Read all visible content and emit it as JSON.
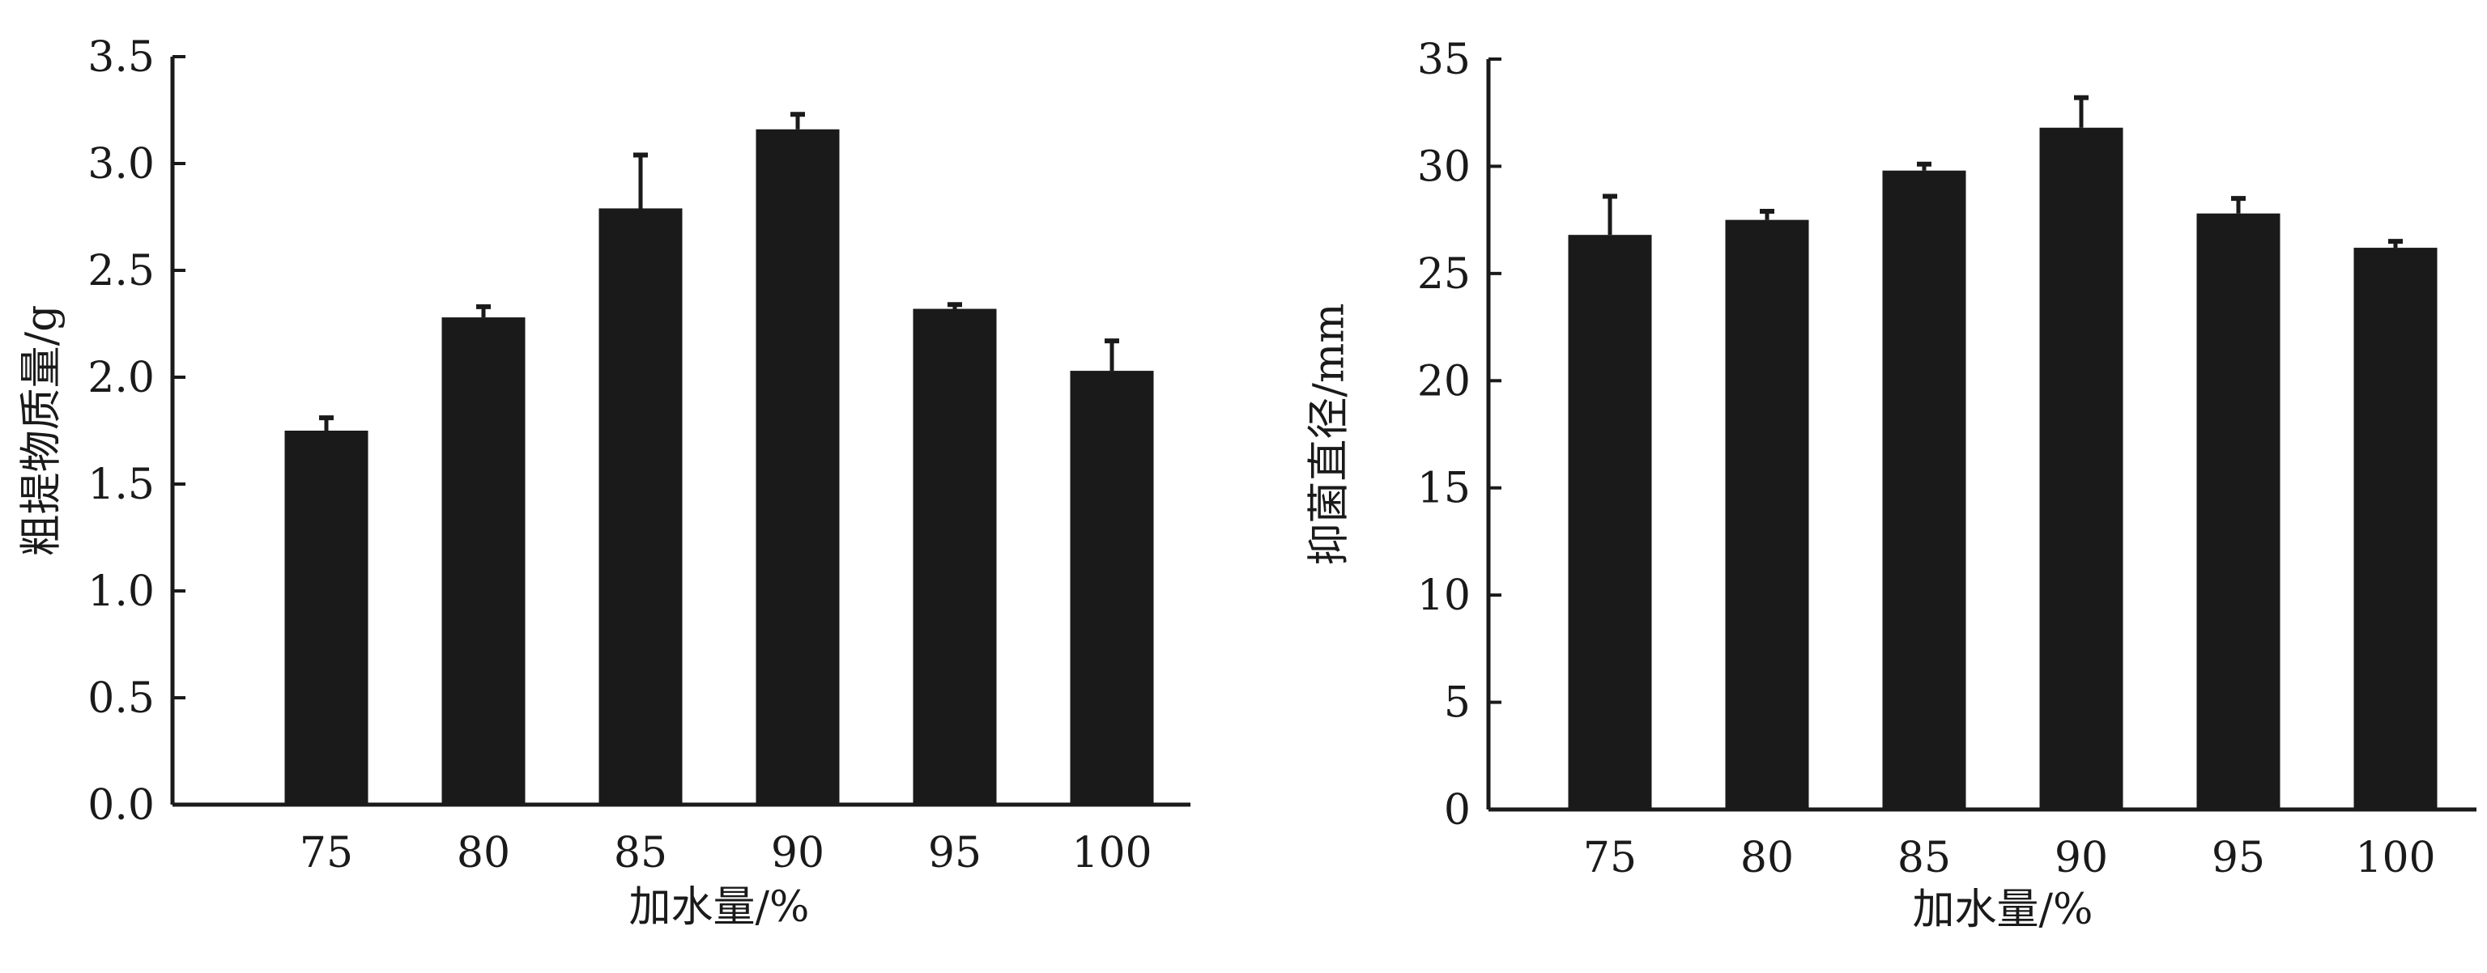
{
  "chart_data": [
    {
      "type": "bar",
      "categories": [
        "75",
        "80",
        "85",
        "90",
        "95",
        "100"
      ],
      "values": [
        1.75,
        2.28,
        2.79,
        3.16,
        2.32,
        2.03
      ],
      "errors": [
        0.06,
        0.05,
        0.25,
        0.07,
        0.02,
        0.14
      ],
      "xlabel": "加水量/%",
      "ylabel": "粗提物质量/g",
      "ylim": [
        0,
        3.5
      ],
      "yticks": [
        "0.0",
        "0.5",
        "1.0",
        "1.5",
        "2.0",
        "2.5",
        "3.0",
        "3.5"
      ],
      "bar_color": "#1a1a1a",
      "grid": false,
      "legend": false
    },
    {
      "type": "bar",
      "categories": [
        "75",
        "80",
        "85",
        "90",
        "95",
        "100"
      ],
      "values": [
        26.8,
        27.5,
        29.8,
        31.8,
        27.8,
        26.2
      ],
      "errors": [
        1.8,
        0.4,
        0.3,
        1.4,
        0.7,
        0.3
      ],
      "xlabel": "加水量/%",
      "ylabel": "抑菌直径/mm",
      "ylim": [
        0,
        35
      ],
      "yticks": [
        "0",
        "5",
        "10",
        "15",
        "20",
        "25",
        "30",
        "35"
      ],
      "bar_color": "#1a1a1a",
      "grid": false,
      "legend": false
    }
  ]
}
